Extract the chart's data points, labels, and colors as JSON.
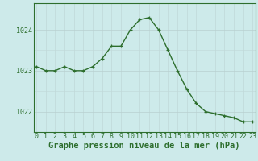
{
  "x": [
    0,
    1,
    2,
    3,
    4,
    5,
    6,
    7,
    8,
    9,
    10,
    11,
    12,
    13,
    14,
    15,
    16,
    17,
    18,
    19,
    20,
    21,
    22,
    23
  ],
  "y": [
    1023.1,
    1023.0,
    1023.0,
    1023.1,
    1023.0,
    1023.0,
    1023.1,
    1023.3,
    1023.6,
    1023.6,
    1024.0,
    1024.25,
    1024.3,
    1024.0,
    1023.5,
    1023.0,
    1022.55,
    1022.2,
    1022.0,
    1021.95,
    1021.9,
    1021.85,
    1021.75,
    1021.75
  ],
  "line_color": "#2d6e2d",
  "marker_color": "#2d6e2d",
  "bg_color": "#cdeaea",
  "grid_color_v": "#c0d8d8",
  "grid_color_h": "#b8d0d0",
  "xlabel": "Graphe pression niveau de la mer (hPa)",
  "xlabel_color": "#2d6e2d",
  "tick_color": "#2d6e2d",
  "ylim": [
    1021.5,
    1024.65
  ],
  "yticks": [
    1022.0,
    1023.0,
    1024.0
  ],
  "xticks": [
    0,
    1,
    2,
    3,
    4,
    5,
    6,
    7,
    8,
    9,
    10,
    11,
    12,
    13,
    14,
    15,
    16,
    17,
    18,
    19,
    20,
    21,
    22,
    23
  ],
  "tick_fontsize": 6.0,
  "xlabel_fontsize": 7.5,
  "linewidth": 1.0,
  "markersize": 2.8,
  "xlim_left": -0.3,
  "xlim_right": 23.3
}
